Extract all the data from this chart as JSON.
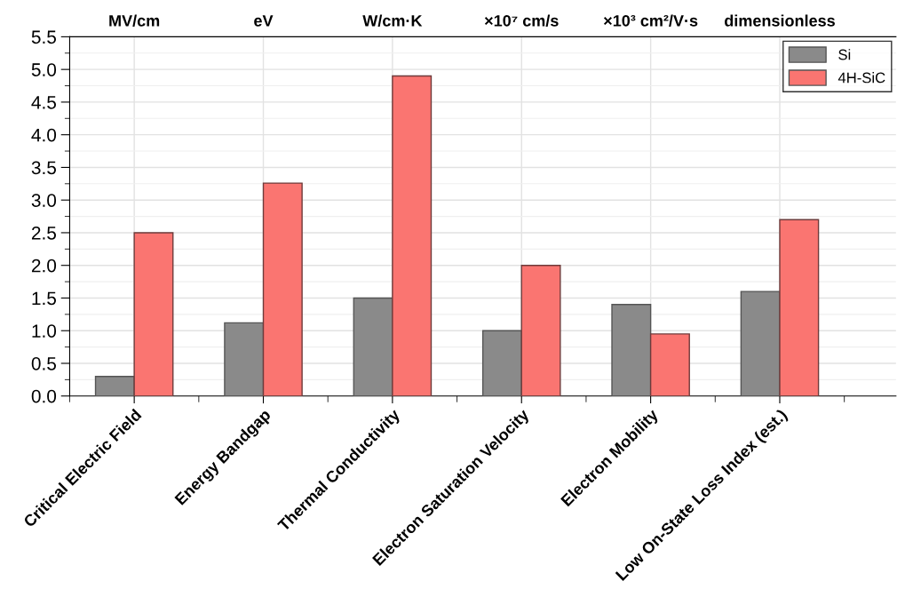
{
  "chart_data": {
    "type": "bar",
    "categories": [
      "Critical Electric Field",
      "Energy Bandgap",
      "Thermal Conductivity",
      "Electron Saturation Velocity",
      "Electron Mobility",
      "Low On-State Loss Index (est.)"
    ],
    "series": [
      {
        "name": "Si",
        "color": "#8a8a8a",
        "values": [
          0.3,
          1.12,
          1.5,
          1.0,
          1.4,
          1.6
        ]
      },
      {
        "name": "4H-SiC",
        "color": "#fa7571",
        "values": [
          2.5,
          3.26,
          4.9,
          2.0,
          0.95,
          2.7
        ]
      }
    ],
    "annotations": [
      "MV/cm",
      "eV",
      "W/cm·K",
      "×10⁷ cm/s",
      "×10³ cm²/V·s",
      "dimensionless"
    ],
    "ylim": [
      0,
      5.5
    ],
    "yticks": [
      {
        "value": 0,
        "label": "0.0"
      },
      0.5,
      {
        "value": 1,
        "label": "1.0"
      },
      1.5,
      {
        "value": 2,
        "label": "2.0"
      },
      2.5,
      {
        "value": 3,
        "label": "3.0"
      },
      3.5,
      {
        "value": 4,
        "label": "4.0"
      },
      4.5,
      {
        "value": 5,
        "label": "5.0"
      },
      5.5
    ],
    "grid": true,
    "legend": "top right"
  }
}
